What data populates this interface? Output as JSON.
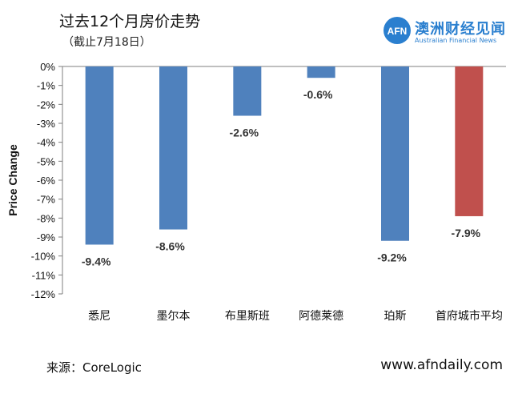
{
  "header": {
    "title": "过去12个月房价走势",
    "subtitle": "（截止7月18日）"
  },
  "brand": {
    "name_cn": "澳洲财经见闻",
    "name_en": "Australian Financial News",
    "logo_text": "AFN",
    "color": "#2a7fcf"
  },
  "footer": {
    "source": "来源：CoreLogic",
    "website": "www.afndaily.com"
  },
  "chart_data": {
    "type": "bar",
    "categories": [
      "悉尼",
      "墨尔本",
      "布里斯班",
      "阿德莱德",
      "珀斯",
      "首府城市平均"
    ],
    "values": [
      -9.4,
      -8.6,
      -2.6,
      -0.6,
      -9.2,
      -7.9
    ],
    "value_labels": [
      "-9.4%",
      "-8.6%",
      "-2.6%",
      "-0.6%",
      "-9.2%",
      "-7.9%"
    ],
    "bar_colors": [
      "#4f81bd",
      "#4f81bd",
      "#4f81bd",
      "#4f81bd",
      "#4f81bd",
      "#c0504d"
    ],
    "ylabel": "Price Change",
    "ylim": [
      -12,
      0
    ],
    "yticks": [
      0,
      -1,
      -2,
      -3,
      -4,
      -5,
      -6,
      -7,
      -8,
      -9,
      -10,
      -11,
      -12
    ],
    "ytick_labels": [
      "0%",
      "-1%",
      "-2%",
      "-3%",
      "-4%",
      "-5%",
      "-6%",
      "-7%",
      "-8%",
      "-9%",
      "-10%",
      "-11%",
      "-12%"
    ],
    "grid": false,
    "legend": "none"
  }
}
